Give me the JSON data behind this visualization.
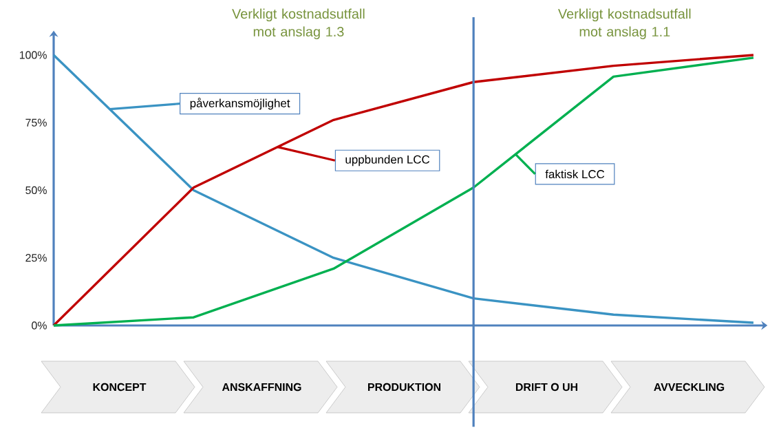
{
  "chart_data": {
    "type": "line",
    "categories": [
      null,
      null,
      null,
      null,
      null,
      null
    ],
    "series": [
      {
        "name": "påverkansmöjlighet",
        "color": "#3a93c3",
        "values": [
          100,
          50,
          25,
          10,
          4,
          1
        ]
      },
      {
        "name": "uppbunden LCC",
        "color": "#c00000",
        "values": [
          0,
          51,
          76,
          90,
          96,
          100
        ]
      },
      {
        "name": "faktisk LCC",
        "color": "#00b050",
        "values": [
          0,
          3,
          21,
          51,
          92,
          99
        ]
      }
    ],
    "ylim": [
      0,
      109
    ],
    "yticks": [
      {
        "value": 0,
        "label": "0%"
      },
      {
        "value": 25,
        "label": "25%"
      },
      {
        "value": 50,
        "label": "50%"
      },
      {
        "value": 75,
        "label": "75%"
      },
      {
        "value": 100,
        "label": "100%"
      }
    ],
    "tick_labels": "y",
    "annotations": [
      "Verkligt kostnadsutfall mot anslag 1.3",
      "Verkligt kostnadsutfall mot anslag 1.1",
      "KONCEPT",
      "ANSKAFFNING",
      "PRODUKTION",
      "DRIFT O UH",
      "AVVECKLING"
    ]
  }
}
